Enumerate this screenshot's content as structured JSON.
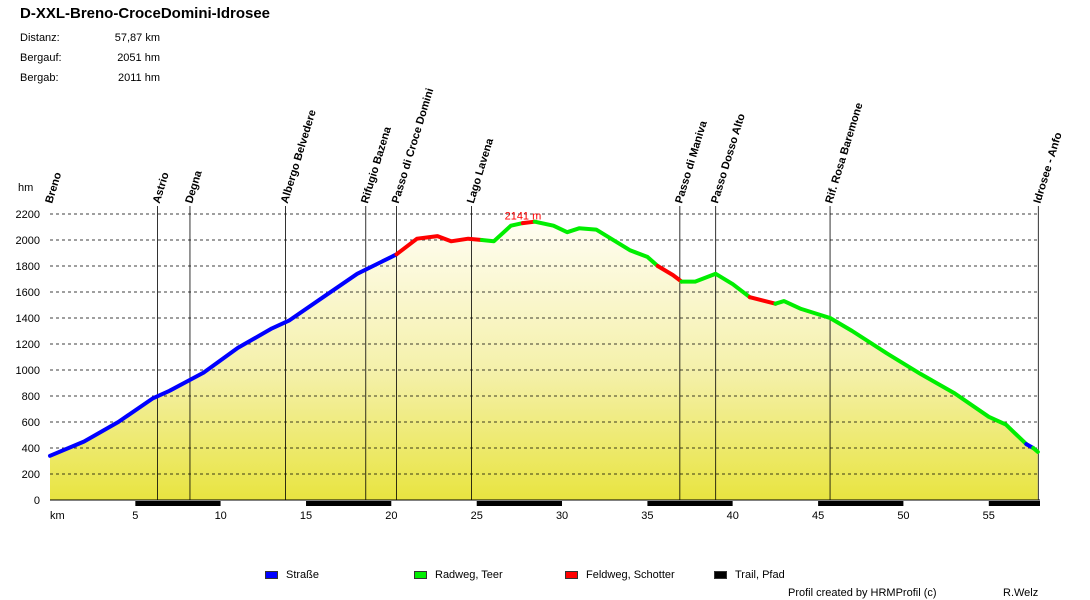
{
  "title": "D-XXL-Breno-CroceDomini-Idrosee",
  "stats": [
    {
      "label": "Distanz:",
      "value": "57,87 km"
    },
    {
      "label": "Bergauf:",
      "value": "2051 hm"
    },
    {
      "label": "Bergab:",
      "value": "2011 hm"
    }
  ],
  "chart_data": {
    "type": "area",
    "ylabel": "hm",
    "xlabel": "km",
    "xlim": [
      0,
      58
    ],
    "ylim": [
      0,
      2200
    ],
    "yticks": [
      0,
      200,
      400,
      600,
      800,
      1000,
      1200,
      1400,
      1600,
      1800,
      2000,
      2200
    ],
    "xticks": [
      5,
      10,
      15,
      20,
      25,
      30,
      35,
      40,
      45,
      50,
      55
    ],
    "max_label": "2141 m",
    "max_point": {
      "km": 28,
      "elev": 2141
    },
    "waypoints": [
      {
        "name": "Breno",
        "km": 0
      },
      {
        "name": "Astrio",
        "km": 6.3
      },
      {
        "name": "Degna",
        "km": 8.2
      },
      {
        "name": "Albergo Belvedere",
        "km": 13.8
      },
      {
        "name": "Rifugio Bazena",
        "km": 18.5
      },
      {
        "name": "Passo di Croce Domini",
        "km": 20.3
      },
      {
        "name": "Lago Lavena",
        "km": 24.7
      },
      {
        "name": "Passo di Maniva",
        "km": 36.9
      },
      {
        "name": "Passo Dosso Alto",
        "km": 39.0
      },
      {
        "name": "Rif. Rosa Baremone",
        "km": 45.7
      },
      {
        "name": "Idrosee - Anfo",
        "km": 57.9
      }
    ],
    "surface_colors": {
      "road": "#0000ff",
      "cycle": "#00ee00",
      "gravel": "#ff0000",
      "trail": "#000000"
    },
    "series": [
      {
        "surface": "road",
        "points": [
          [
            0,
            340
          ],
          [
            2,
            450
          ],
          [
            4,
            600
          ],
          [
            6,
            780
          ],
          [
            7,
            840
          ],
          [
            9,
            980
          ],
          [
            11,
            1170
          ],
          [
            13,
            1320
          ],
          [
            14,
            1380
          ],
          [
            16,
            1560
          ],
          [
            18,
            1740
          ],
          [
            20,
            1870
          ],
          [
            20.3,
            1890
          ]
        ]
      },
      {
        "surface": "gravel",
        "points": [
          [
            20.3,
            1890
          ],
          [
            21.5,
            2010
          ],
          [
            22.7,
            2030
          ],
          [
            23.5,
            1990
          ],
          [
            24.5,
            2010
          ],
          [
            25.3,
            2000
          ]
        ]
      },
      {
        "surface": "cycle",
        "points": [
          [
            25.3,
            2000
          ],
          [
            26,
            1990
          ],
          [
            27,
            2110
          ],
          [
            27.7,
            2130
          ]
        ]
      },
      {
        "surface": "gravel",
        "points": [
          [
            27.7,
            2130
          ],
          [
            28.4,
            2141
          ]
        ]
      },
      {
        "surface": "cycle",
        "points": [
          [
            28.4,
            2141
          ],
          [
            29.5,
            2110
          ],
          [
            30.3,
            2060
          ],
          [
            31,
            2090
          ],
          [
            32,
            2080
          ],
          [
            34,
            1920
          ],
          [
            35,
            1870
          ],
          [
            35.6,
            1800
          ]
        ]
      },
      {
        "surface": "gravel",
        "points": [
          [
            35.6,
            1800
          ],
          [
            36.5,
            1730
          ],
          [
            37,
            1680
          ]
        ]
      },
      {
        "surface": "cycle",
        "points": [
          [
            37,
            1680
          ],
          [
            37.8,
            1680
          ],
          [
            39,
            1740
          ],
          [
            40,
            1660
          ],
          [
            41,
            1560
          ]
        ]
      },
      {
        "surface": "gravel",
        "points": [
          [
            41,
            1560
          ],
          [
            42.5,
            1510
          ]
        ]
      },
      {
        "surface": "cycle",
        "points": [
          [
            42.5,
            1510
          ],
          [
            43,
            1530
          ],
          [
            44,
            1470
          ],
          [
            45.7,
            1400
          ],
          [
            47,
            1300
          ],
          [
            49,
            1130
          ],
          [
            51,
            970
          ],
          [
            53,
            820
          ],
          [
            55,
            640
          ],
          [
            56,
            580
          ],
          [
            57.2,
            430
          ]
        ]
      },
      {
        "surface": "road",
        "points": [
          [
            57.2,
            430
          ],
          [
            57.6,
            400
          ]
        ]
      },
      {
        "surface": "cycle",
        "points": [
          [
            57.6,
            400
          ],
          [
            57.87,
            370
          ]
        ]
      }
    ],
    "surface_bar": {
      "pattern": "alternating",
      "segment_km": 5
    },
    "legend": [
      {
        "label": "Straße",
        "color": "#0000ff"
      },
      {
        "label": "Radweg, Teer",
        "color": "#00ee00"
      },
      {
        "label": "Feldweg, Schotter",
        "color": "#ff0000"
      },
      {
        "label": "Trail, Pfad",
        "color": "#000000"
      }
    ]
  },
  "footer": {
    "credit": "Profil created by HRMProfil (c)",
    "author": "R.Welz"
  }
}
